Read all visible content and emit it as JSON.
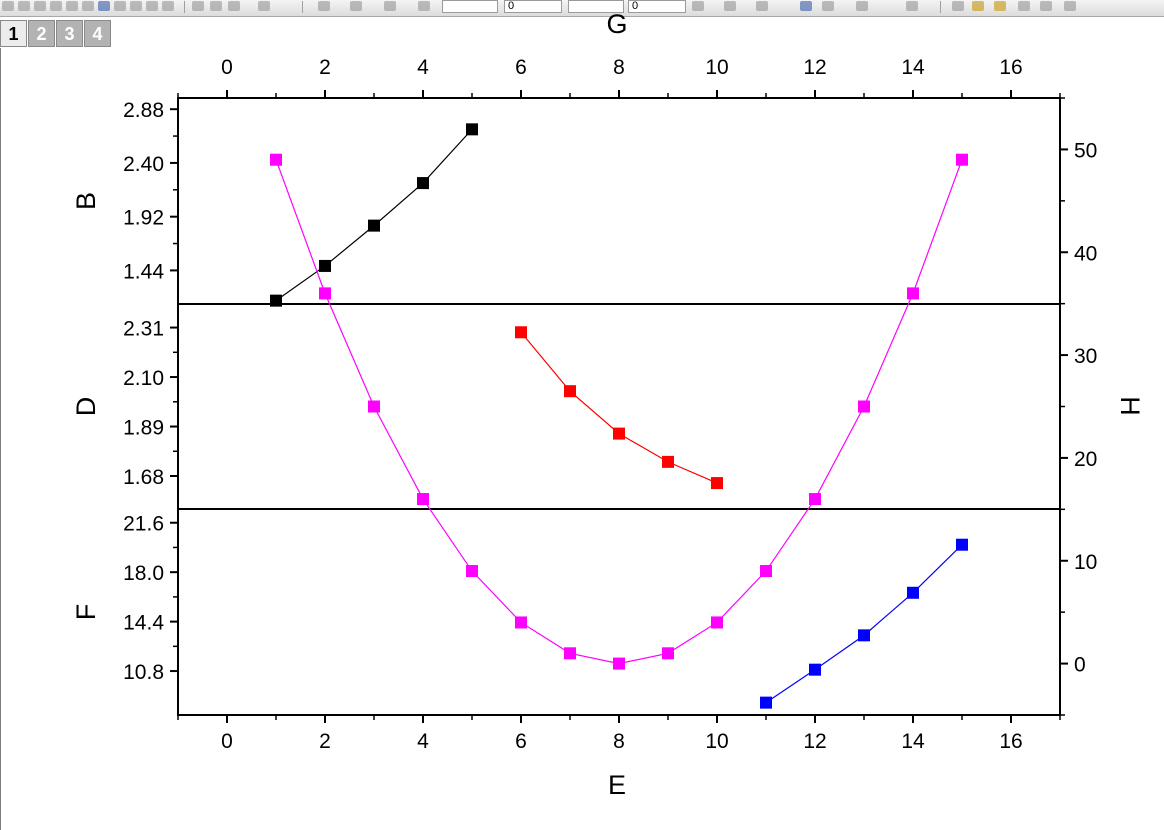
{
  "window": {
    "layer_tabs": [
      {
        "label": "1",
        "active": true
      },
      {
        "label": "2",
        "active": false
      },
      {
        "label": "3",
        "active": false
      },
      {
        "label": "4",
        "active": false
      }
    ],
    "toolbar_fields": {
      "size_a": "0",
      "size_b": "0"
    }
  },
  "chart_data": {
    "type": "line",
    "x_bottom": {
      "label": "E",
      "range": [
        -1,
        17
      ],
      "ticks": [
        0,
        2,
        4,
        6,
        8,
        10,
        12,
        14,
        16
      ]
    },
    "x_top": {
      "label": "G",
      "range": [
        -1,
        17
      ],
      "ticks": [
        0,
        2,
        4,
        6,
        8,
        10,
        12,
        14,
        16
      ]
    },
    "y_right": {
      "label": "H",
      "range": [
        -5,
        55
      ],
      "ticks": [
        0,
        10,
        20,
        30,
        40,
        50
      ]
    },
    "panels": [
      {
        "ylabel": "B",
        "ylim": [
          1.14,
          2.98
        ],
        "ticks": [
          1.44,
          1.92,
          2.4,
          2.88
        ],
        "tick_labels": [
          "1.44",
          "1.92",
          "2.40",
          "2.88"
        ],
        "series": [
          {
            "color": "#000000",
            "x": [
              1,
              2,
              3,
              4,
              5
            ],
            "y": [
              1.17,
              1.48,
              1.84,
              2.22,
              2.7
            ]
          }
        ]
      },
      {
        "ylabel": "D",
        "ylim": [
          1.54,
          2.41
        ],
        "ticks": [
          1.68,
          1.89,
          2.1,
          2.31
        ],
        "tick_labels": [
          "1.68",
          "1.89",
          "2.10",
          "2.31"
        ],
        "series": [
          {
            "color": "#ff0000",
            "x": [
              6,
              7,
              8,
              9,
              10
            ],
            "y": [
              2.29,
              2.04,
              1.86,
              1.74,
              1.65
            ]
          }
        ]
      },
      {
        "ylabel": "F",
        "ylim": [
          7.6,
          22.6
        ],
        "ticks": [
          10.8,
          14.4,
          18.0,
          21.6
        ],
        "tick_labels": [
          "10.8",
          "14.4",
          "18.0",
          "21.6"
        ],
        "series": [
          {
            "color": "#0000ff",
            "x": [
              11,
              12,
              13,
              14,
              15
            ],
            "y": [
              8.5,
              10.9,
              13.4,
              16.5,
              20.0
            ]
          }
        ]
      }
    ],
    "overlay": {
      "axis": "right",
      "color": "#ff00ff",
      "x": [
        1,
        2,
        3,
        4,
        5,
        6,
        7,
        8,
        9,
        10,
        11,
        12,
        13,
        14,
        15
      ],
      "y": [
        49,
        36,
        25,
        16,
        9,
        4,
        1,
        0,
        1,
        4,
        9,
        16,
        25,
        36,
        49
      ]
    }
  }
}
